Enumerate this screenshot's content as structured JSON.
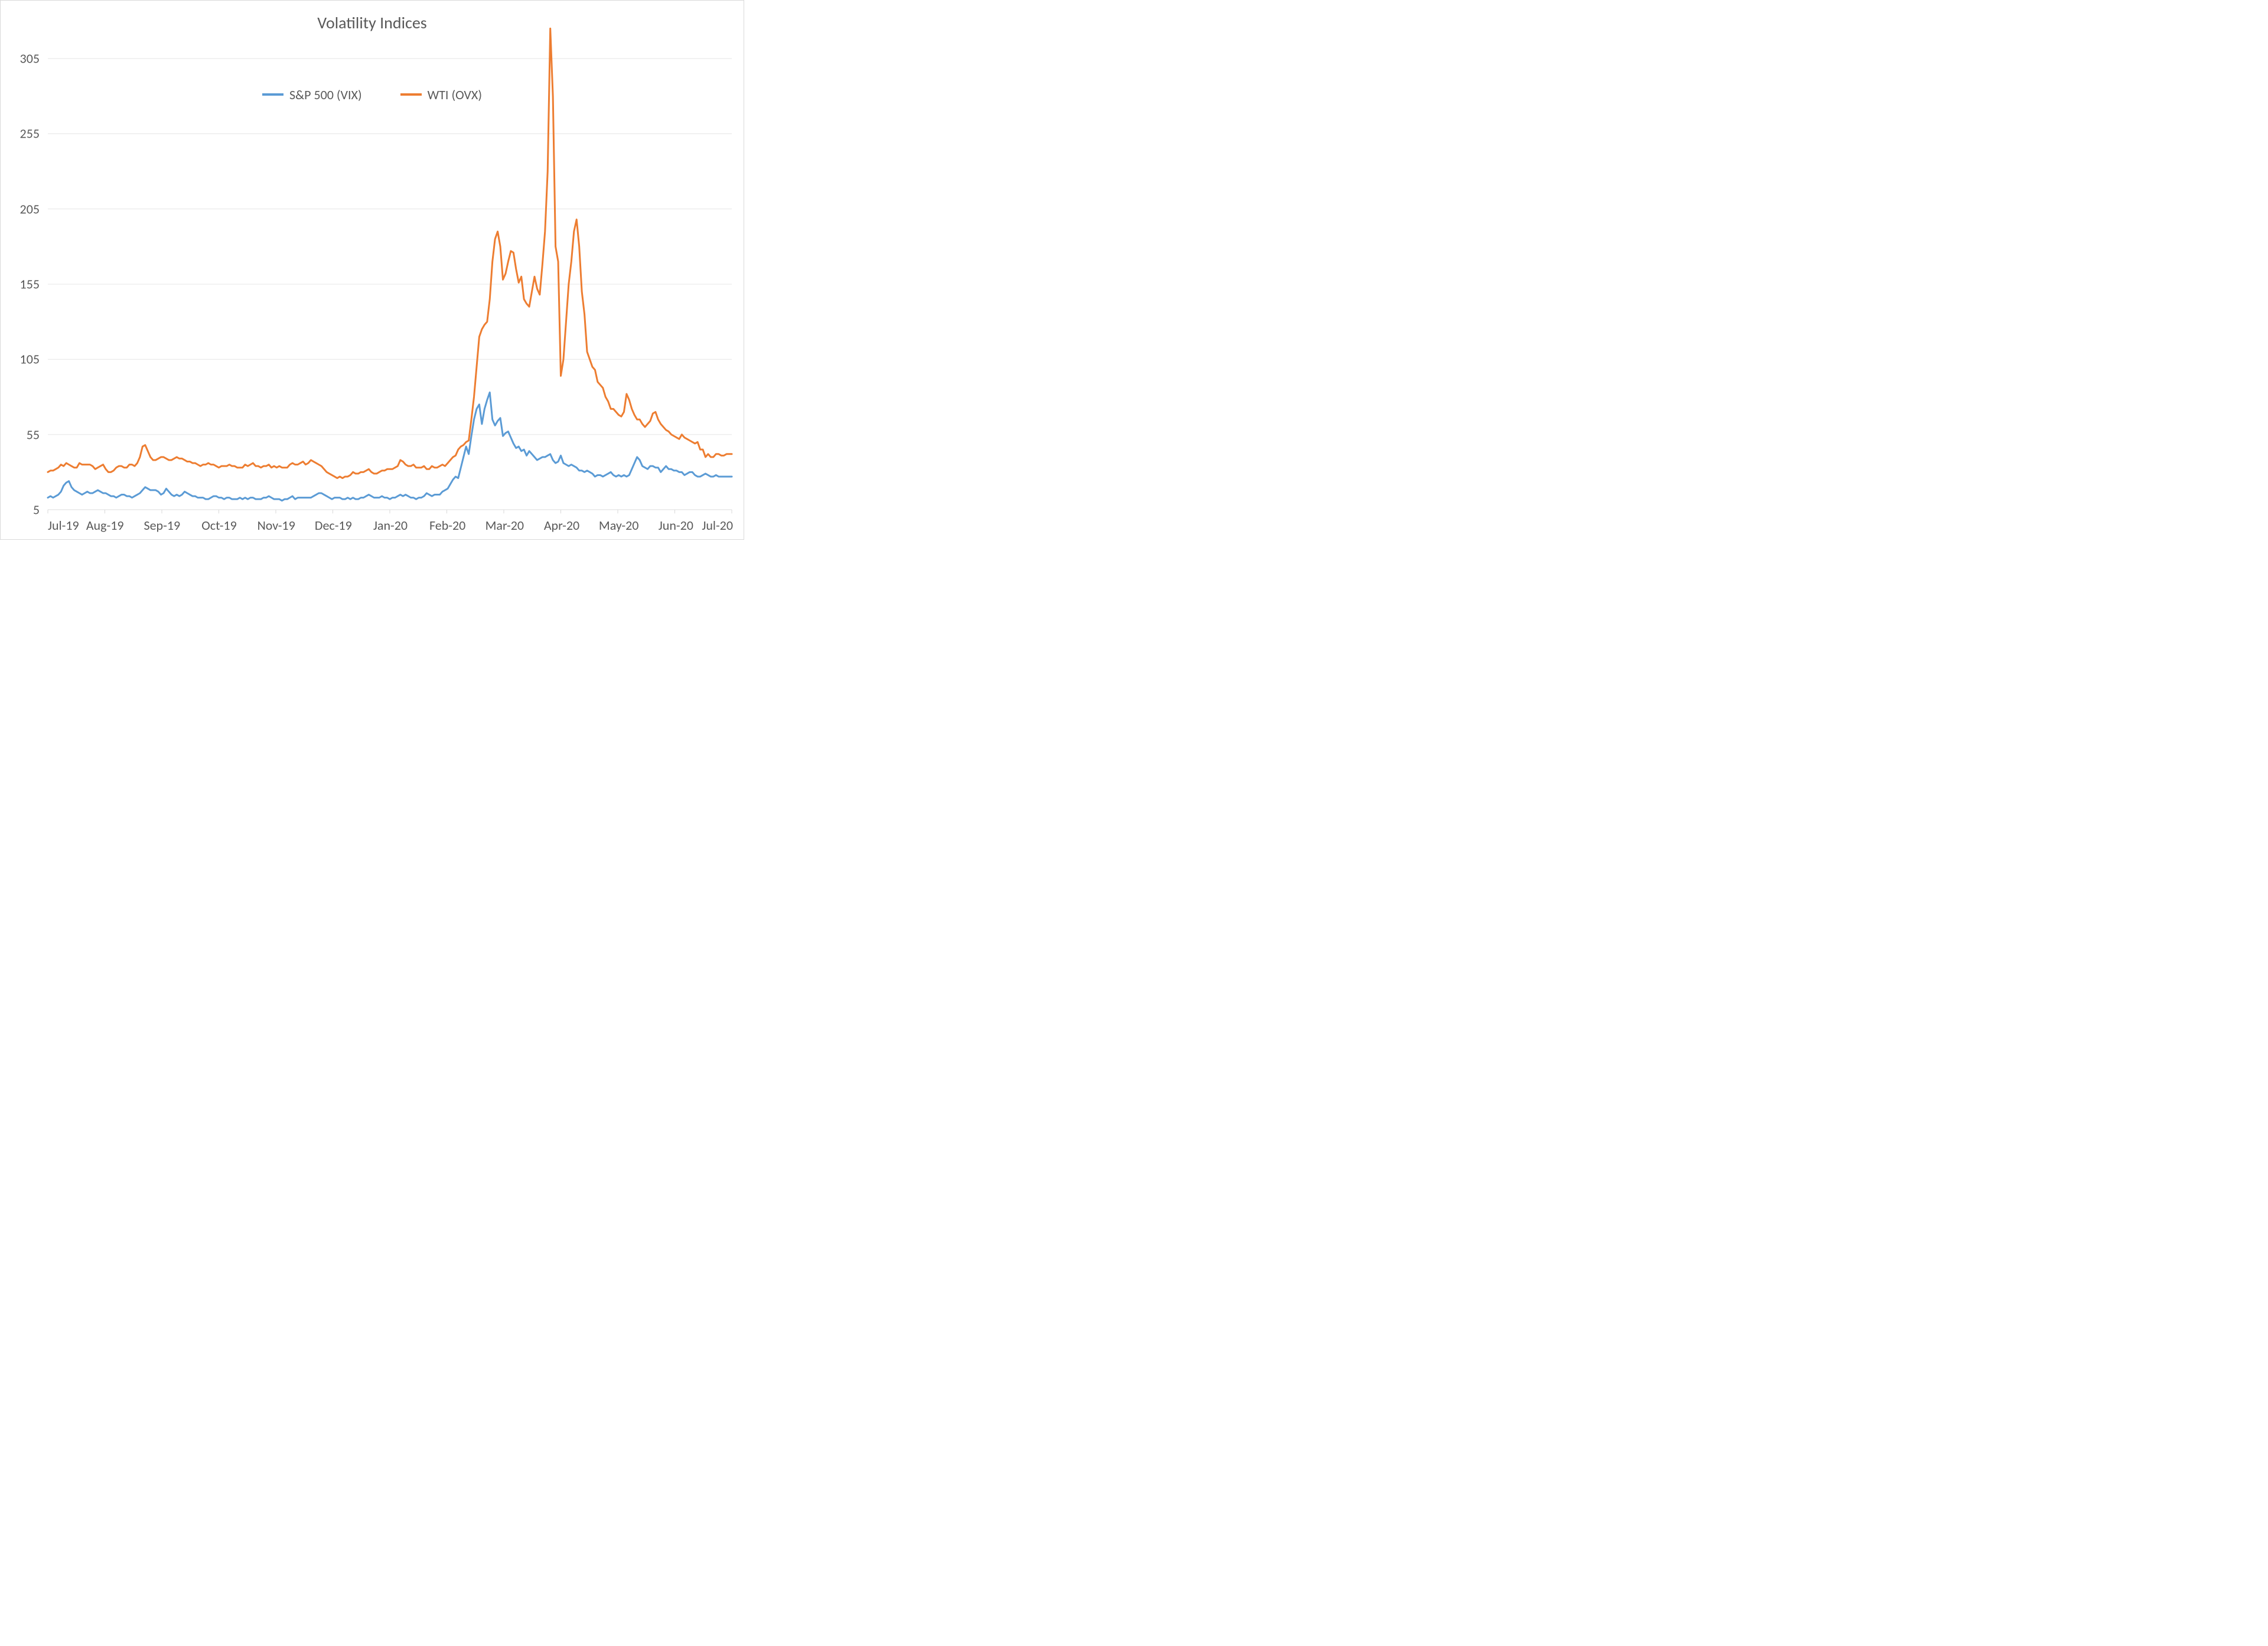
{
  "chart": {
    "type": "line",
    "title": "Volatility Indices",
    "title_fontsize": 28,
    "title_color": "#595959",
    "background_color": "#ffffff",
    "border_color": "#d9d9d9",
    "grid_color": "#e6e6e6",
    "label_color": "#595959",
    "label_fontsize": 22,
    "y_axis": {
      "min": 5,
      "max": 320,
      "ticks": [
        5,
        55,
        105,
        155,
        205,
        255,
        305
      ]
    },
    "x_axis": {
      "labels": [
        "Jul-19",
        "Aug-19",
        "Sep-19",
        "Oct-19",
        "Nov-19",
        "Dec-19",
        "Jan-20",
        "Feb-20",
        "Mar-20",
        "Apr-20",
        "May-20",
        "Jun-20",
        "Jul-20"
      ],
      "min_index": 0,
      "max_index": 260
    },
    "legend": {
      "position": "top",
      "items": [
        {
          "label": "S&P 500 (VIX)",
          "color": "#5b9bd5"
        },
        {
          "label": "WTI (OVX)",
          "color": "#ed7d31"
        }
      ]
    },
    "series": [
      {
        "name": "S&P 500 (VIX)",
        "color": "#5b9bd5",
        "line_width": 3,
        "values": [
          13,
          14,
          13,
          14,
          15,
          17,
          21,
          23,
          24,
          20,
          18,
          17,
          16,
          15,
          16,
          17,
          16,
          16,
          17,
          18,
          17,
          16,
          16,
          15,
          14,
          14,
          13,
          14,
          15,
          15,
          14,
          14,
          13,
          14,
          15,
          16,
          18,
          20,
          19,
          18,
          18,
          18,
          17,
          15,
          16,
          19,
          17,
          15,
          14,
          15,
          14,
          15,
          17,
          16,
          15,
          14,
          14,
          13,
          13,
          13,
          12,
          12,
          13,
          14,
          14,
          13,
          13,
          12,
          13,
          13,
          12,
          12,
          12,
          13,
          12,
          13,
          12,
          13,
          13,
          12,
          12,
          12,
          13,
          13,
          14,
          13,
          12,
          12,
          12,
          11,
          12,
          12,
          13,
          14,
          12,
          13,
          13,
          13,
          13,
          13,
          13,
          14,
          15,
          16,
          16,
          15,
          14,
          13,
          12,
          13,
          13,
          13,
          12,
          12,
          13,
          12,
          13,
          12,
          12,
          13,
          13,
          14,
          15,
          14,
          13,
          13,
          13,
          14,
          13,
          13,
          12,
          13,
          13,
          14,
          15,
          14,
          15,
          14,
          13,
          13,
          12,
          13,
          13,
          14,
          16,
          15,
          14,
          15,
          15,
          15,
          17,
          18,
          19,
          22,
          25,
          27,
          26,
          33,
          40,
          47,
          42,
          54,
          65,
          72,
          75,
          62,
          72,
          78,
          83,
          65,
          61,
          64,
          66,
          54,
          56,
          57,
          53,
          49,
          46,
          47,
          44,
          45,
          41,
          44,
          42,
          40,
          38,
          39,
          40,
          40,
          41,
          42,
          38,
          36,
          37,
          41,
          36,
          35,
          34,
          35,
          34,
          33,
          31,
          31,
          30,
          31,
          30,
          29,
          27,
          28,
          28,
          27,
          28,
          29,
          30,
          28,
          27,
          28,
          27,
          28,
          27,
          28,
          32,
          36,
          40,
          38,
          34,
          33,
          32,
          34,
          34,
          33,
          33,
          30,
          32,
          34,
          32,
          32,
          31,
          31,
          30,
          30,
          28,
          29,
          30,
          30,
          28,
          27,
          27,
          28,
          29,
          28,
          27,
          27,
          28,
          27,
          27,
          27,
          27,
          27,
          27
        ]
      },
      {
        "name": "WTI (OVX)",
        "color": "#ed7d31",
        "line_width": 3,
        "values": [
          30,
          31,
          31,
          32,
          33,
          35,
          34,
          36,
          35,
          34,
          33,
          33,
          36,
          35,
          35,
          35,
          35,
          34,
          32,
          33,
          34,
          35,
          32,
          30,
          30,
          31,
          33,
          34,
          34,
          33,
          33,
          35,
          35,
          34,
          36,
          40,
          47,
          48,
          44,
          40,
          38,
          38,
          39,
          40,
          40,
          39,
          38,
          38,
          39,
          40,
          39,
          39,
          38,
          37,
          37,
          36,
          36,
          35,
          34,
          35,
          35,
          36,
          35,
          35,
          34,
          33,
          34,
          34,
          34,
          35,
          34,
          34,
          33,
          33,
          33,
          35,
          34,
          35,
          36,
          34,
          34,
          33,
          34,
          34,
          35,
          33,
          34,
          33,
          34,
          33,
          33,
          33,
          35,
          36,
          35,
          35,
          36,
          37,
          35,
          36,
          38,
          37,
          36,
          35,
          34,
          32,
          30,
          29,
          28,
          27,
          26,
          27,
          26,
          27,
          27,
          28,
          30,
          29,
          29,
          30,
          30,
          31,
          32,
          30,
          29,
          29,
          30,
          31,
          31,
          32,
          32,
          32,
          33,
          34,
          38,
          37,
          35,
          34,
          34,
          35,
          33,
          33,
          33,
          34,
          32,
          32,
          34,
          33,
          33,
          34,
          35,
          34,
          36,
          38,
          40,
          41,
          45,
          47,
          48,
          50,
          51,
          65,
          80,
          100,
          120,
          125,
          128,
          130,
          145,
          170,
          185,
          190,
          180,
          158,
          162,
          170,
          177,
          176,
          165,
          156,
          160,
          145,
          142,
          140,
          150,
          160,
          152,
          148,
          168,
          190,
          230,
          325,
          280,
          180,
          170,
          94,
          105,
          130,
          155,
          170,
          190,
          198,
          180,
          150,
          135,
          110,
          105,
          100,
          98,
          90,
          88,
          86,
          80,
          77,
          72,
          72,
          70,
          68,
          67,
          70,
          82,
          78,
          72,
          68,
          65,
          65,
          62,
          60,
          62,
          64,
          69,
          70,
          65,
          62,
          60,
          58,
          57,
          55,
          54,
          53,
          52,
          55,
          53,
          52,
          51,
          50,
          49,
          50,
          45,
          45,
          40,
          42,
          40,
          40,
          42,
          42,
          41,
          41,
          42,
          42,
          42
        ]
      }
    ]
  }
}
